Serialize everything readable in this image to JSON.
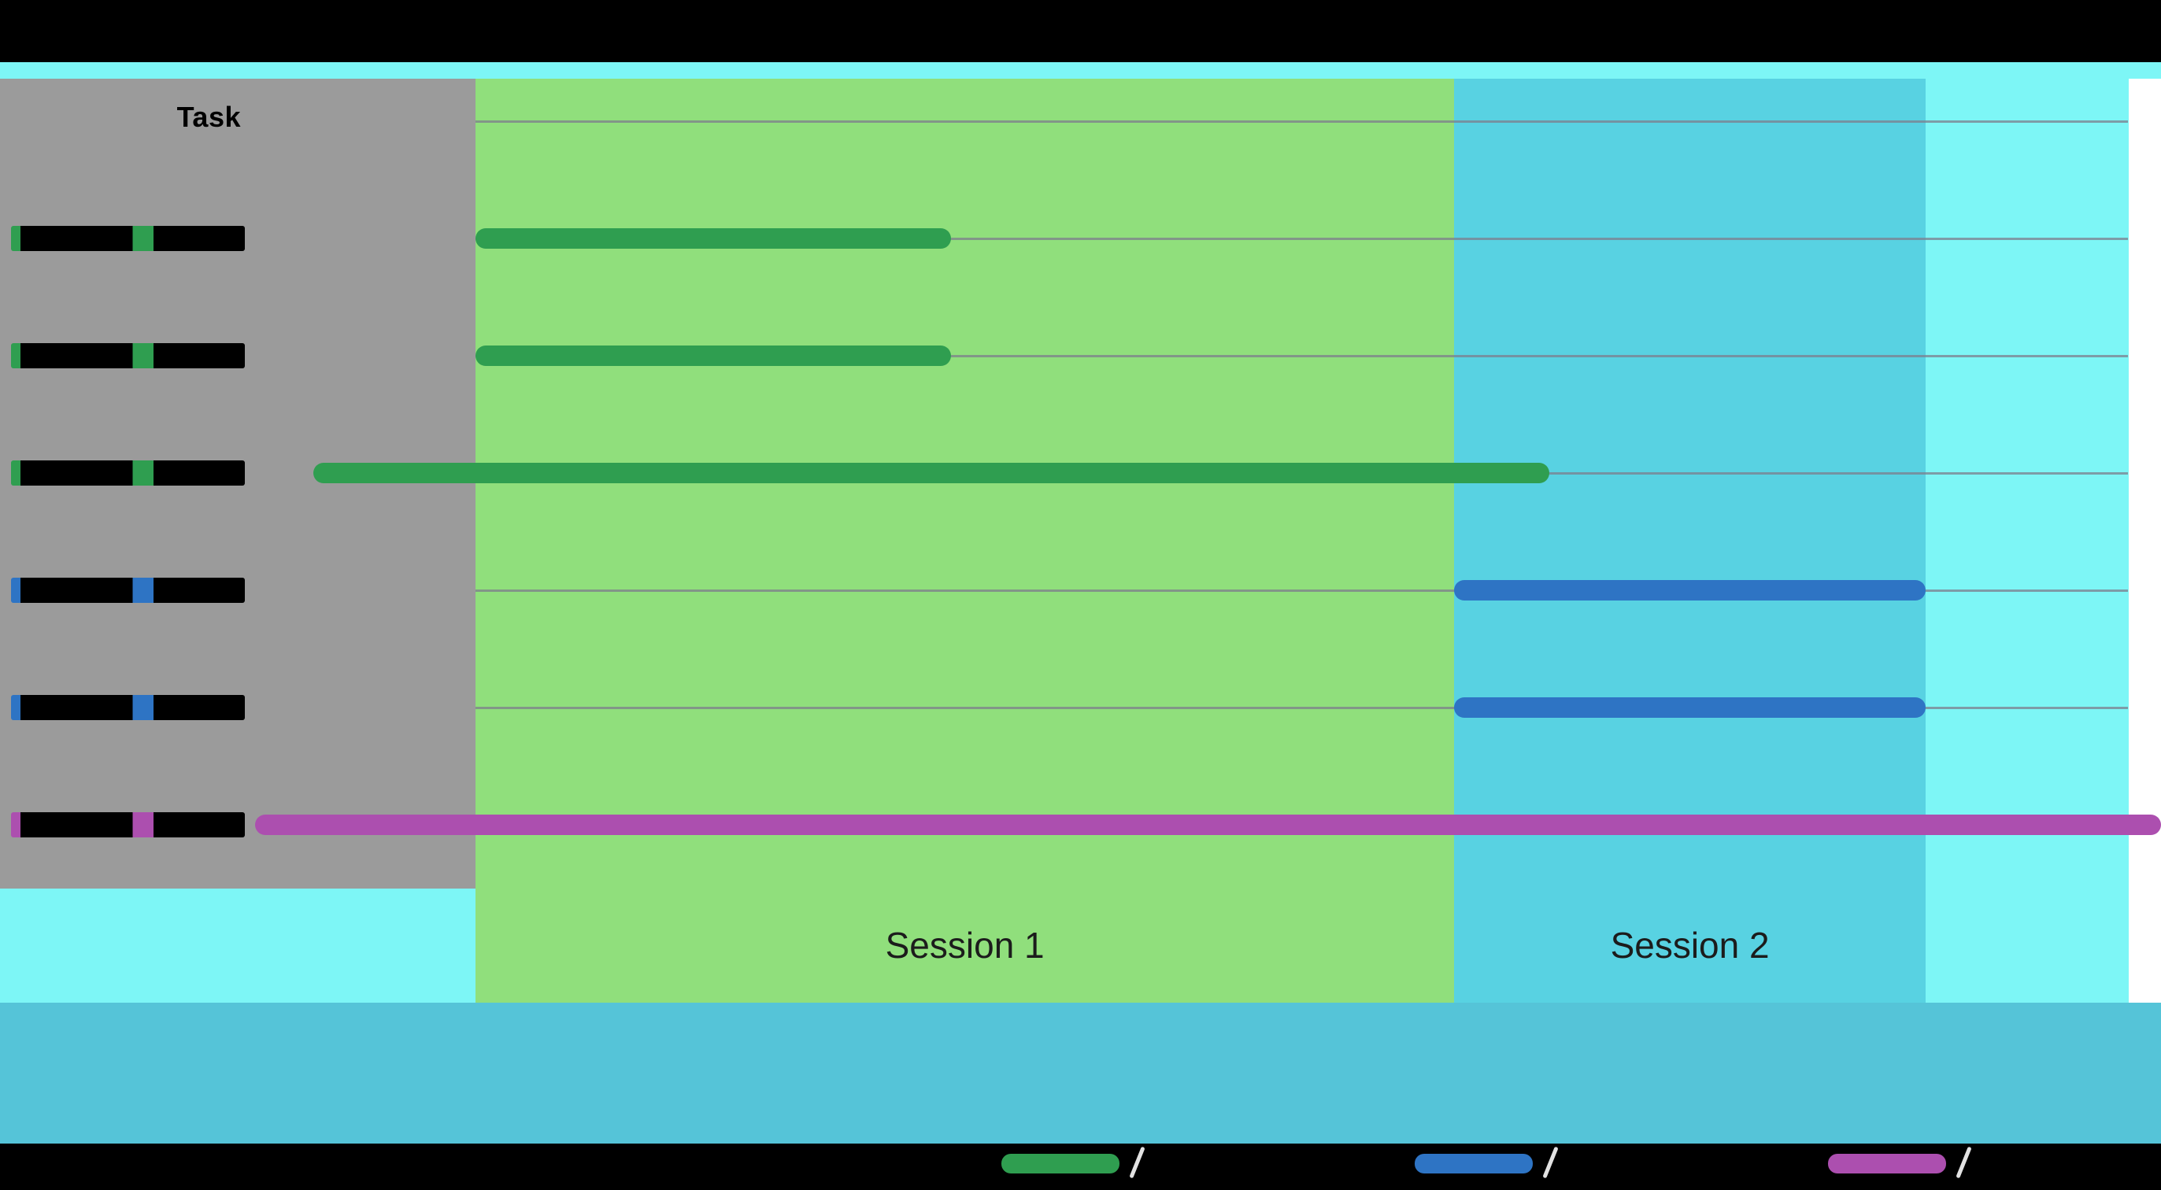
{
  "chart_data": {
    "type": "gantt",
    "task_column_header": "Task",
    "x_axis": {
      "unit": "percent_of_image_width",
      "range": [
        0,
        100
      ],
      "tick_labels_visible": false
    },
    "regions": [
      {
        "name": "pre-session",
        "label": "",
        "start": 11.3,
        "end": 22.0,
        "color_key": "panel_gray"
      },
      {
        "name": "session-1",
        "label": "Session 1",
        "start": 22.0,
        "end": 67.3,
        "color_key": "session1_green"
      },
      {
        "name": "session-2",
        "label": "Session 2",
        "start": 67.3,
        "end": 89.1,
        "color_key": "session2_cyan"
      },
      {
        "name": "post-session",
        "label": "",
        "start": 89.1,
        "end": 98.5,
        "color_key": "post_session_cyan"
      }
    ],
    "tasks": [
      {
        "row": 1,
        "series": "green",
        "start": 22.0,
        "end": 44.0,
        "label_visible": ""
      },
      {
        "row": 2,
        "series": "green",
        "start": 22.0,
        "end": 44.0,
        "label_visible": ""
      },
      {
        "row": 3,
        "series": "green",
        "start": 14.5,
        "end": 71.7,
        "label_visible": ""
      },
      {
        "row": 4,
        "series": "blue",
        "start": 67.3,
        "end": 89.1,
        "label_visible": ""
      },
      {
        "row": 5,
        "series": "blue",
        "start": 67.3,
        "end": 89.1,
        "label_visible": ""
      },
      {
        "row": 6,
        "series": "magenta",
        "start": 11.8,
        "end": 100.0,
        "label_visible": ""
      }
    ],
    "row_labels_redacted": true,
    "gridlines": {
      "horizontal_rows": 7,
      "vertical": false
    },
    "legend_position": "bottom"
  },
  "legend": [
    {
      "series": "green"
    },
    {
      "series": "blue"
    },
    {
      "series": "magenta"
    }
  ],
  "colors": {
    "page_background": "#FFFFFF",
    "black_bar": "#000000",
    "strip_cyan": "#7DF6F6",
    "panel_gray": "#9B9B9B",
    "session1_green": "#90DF7C",
    "session2_cyan": "#58D2E2",
    "post_session_cyan": "#7DF6F6",
    "footer_teal": "#55C4D8",
    "gridline": "#7D7D8C",
    "series_green": "#2F9E50",
    "series_blue": "#2E74C4",
    "series_magenta": "#AC4FAF",
    "session_label_text": "#1C1C1C",
    "legend_slash": "#E2E2E2"
  }
}
